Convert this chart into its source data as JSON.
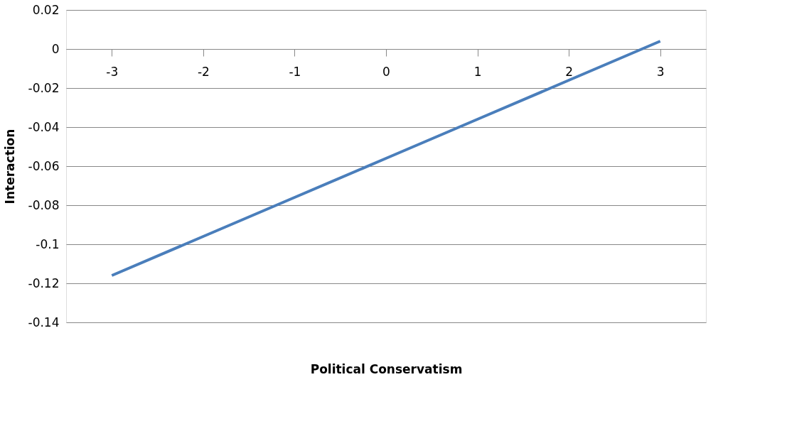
{
  "chart_data": {
    "type": "line",
    "xlabel": "Political Conservatism",
    "ylabel": "Interaction",
    "categories": [
      "-3",
      "-2",
      "-1",
      "0",
      "1",
      "2",
      "3"
    ],
    "series": [
      {
        "color": "#4a7ebb",
        "values": [
          -0.116,
          -0.096,
          -0.076,
          -0.056,
          -0.036,
          -0.016,
          0.004
        ]
      }
    ],
    "ylim": [
      -0.14,
      0.02
    ],
    "yticks": [
      -0.14,
      -0.12,
      -0.1,
      -0.08,
      -0.06,
      -0.04,
      -0.02,
      0,
      0.02
    ],
    "grid": "y",
    "legend": false,
    "marker": "none",
    "line_style": "solid"
  }
}
